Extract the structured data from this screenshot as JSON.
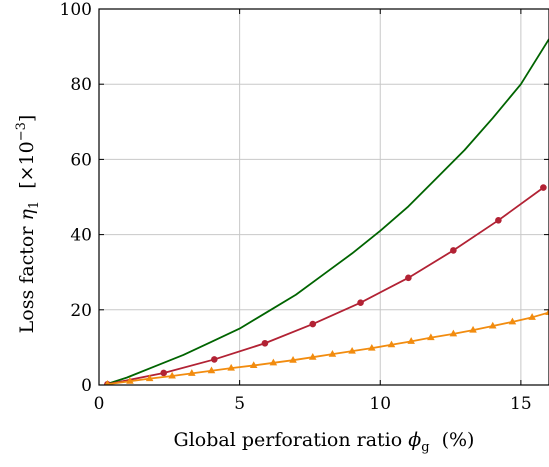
{
  "chart_data": {
    "type": "line",
    "title": "",
    "xlabel": "Global perforation ratio",
    "xlabel_symbol": "ϕ",
    "xlabel_subscript": "g",
    "xlabel_unit": "(%)",
    "ylabel": "Loss factor",
    "ylabel_symbol": "η",
    "ylabel_subscript": "1",
    "ylabel_scale_base": "[×10",
    "ylabel_scale_exp": "−3",
    "ylabel_scale_close": "]",
    "xlim": [
      0,
      16
    ],
    "ylim": [
      0,
      100
    ],
    "xticks": [
      0,
      5,
      10,
      15
    ],
    "yticks": [
      0,
      20,
      40,
      60,
      80,
      100
    ],
    "grid": true,
    "legend": "none",
    "series": [
      {
        "color": "#006400",
        "marker": "none",
        "x": [
          0.3,
          1,
          2,
          3,
          4,
          5,
          6,
          7,
          8,
          9,
          10,
          11,
          12,
          13,
          14,
          15,
          16
        ],
        "y": [
          0.3,
          2,
          5,
          8,
          11.5,
          15,
          19.5,
          24,
          29.5,
          35,
          41,
          47.5,
          55,
          62.5,
          71,
          80,
          92
        ]
      },
      {
        "color": "#b22234",
        "marker": "circle",
        "x": [
          0.3,
          2.3,
          4.1,
          5.9,
          7.6,
          9.3,
          11.0,
          12.6,
          14.2,
          15.8
        ],
        "y": [
          0.2,
          3.2,
          6.8,
          11.1,
          16.2,
          21.9,
          28.5,
          35.8,
          43.8,
          52.5
        ]
      },
      {
        "color": "#f28c0f",
        "marker": "triangle",
        "x": [
          0.3,
          1.1,
          1.8,
          2.6,
          3.3,
          4.0,
          4.7,
          5.5,
          6.2,
          6.9,
          7.6,
          8.3,
          9.0,
          9.7,
          10.4,
          11.1,
          11.8,
          12.6,
          13.3,
          14.0,
          14.7,
          15.4,
          16.0
        ],
        "y": [
          0.2,
          1.0,
          1.7,
          2.4,
          3.1,
          3.8,
          4.5,
          5.2,
          5.9,
          6.6,
          7.4,
          8.2,
          9.0,
          9.8,
          10.7,
          11.6,
          12.6,
          13.6,
          14.6,
          15.7,
          16.8,
          18.0,
          19.3
        ]
      }
    ]
  }
}
